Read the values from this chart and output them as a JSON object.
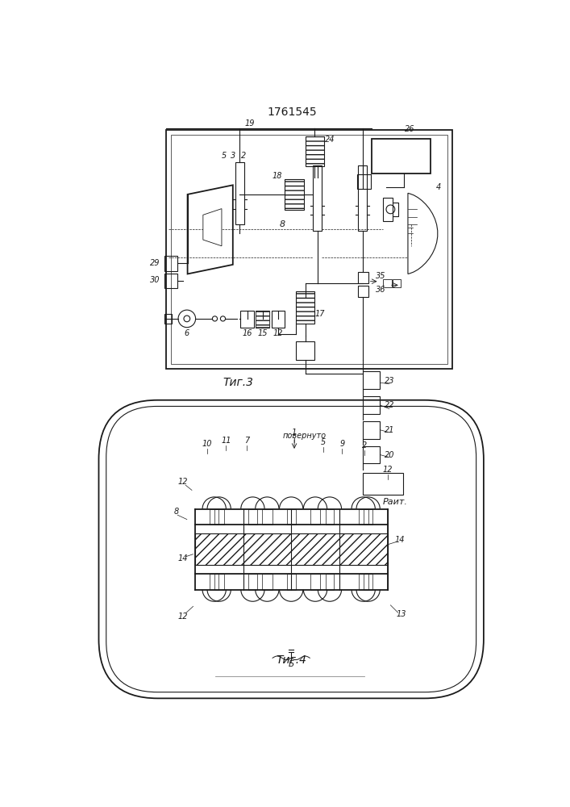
{
  "title": "1761545",
  "bg_color": "#ffffff",
  "lc": "#1a1a1a",
  "fig3_cap": "Τиг.3",
  "fig4_cap": "Τиг.4",
  "povernuto": "повернуто",
  "rait": "Раит."
}
